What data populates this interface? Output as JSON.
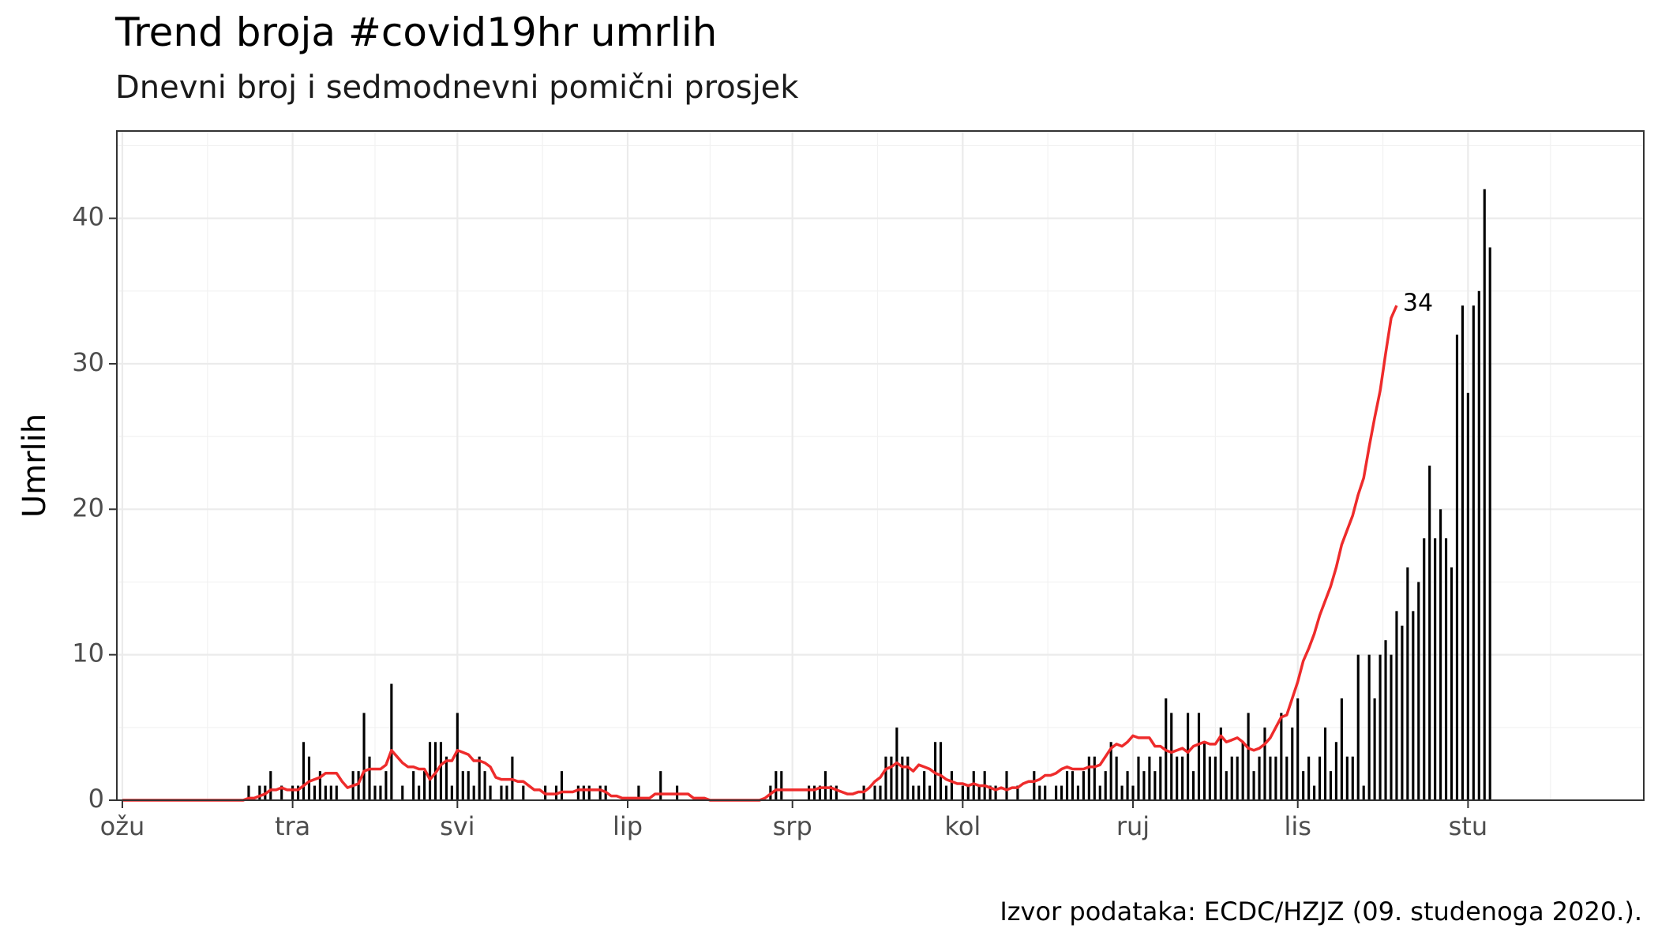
{
  "chart_data": {
    "type": "bar",
    "title": "Trend broja #covid19hr umrlih",
    "subtitle": "Dnevni broj i sedmodnevni pomični prosjek",
    "ylabel": "Umrlih",
    "caption": "Izvor podataka: ECDC/HZJZ (09. studenoga 2020.).",
    "x_start_date": "2020-03-01",
    "x_end_date": "2020-11-09",
    "xlim": [
      "2020-02-29",
      "2020-12-03"
    ],
    "ylim": [
      0,
      46
    ],
    "y_ticks": [
      0,
      10,
      20,
      30,
      40
    ],
    "x_ticks": [
      {
        "date": "2020-03-01",
        "label": "ožu"
      },
      {
        "date": "2020-04-01",
        "label": "tra"
      },
      {
        "date": "2020-05-01",
        "label": "svi"
      },
      {
        "date": "2020-06-01",
        "label": "lip"
      },
      {
        "date": "2020-07-01",
        "label": "srp"
      },
      {
        "date": "2020-08-01",
        "label": "kol"
      },
      {
        "date": "2020-09-01",
        "label": "ruj"
      },
      {
        "date": "2020-10-01",
        "label": "lis"
      },
      {
        "date": "2020-11-01",
        "label": "stu"
      }
    ],
    "series": [
      {
        "type": "bar",
        "color": "#000000",
        "values": [
          0,
          0,
          0,
          0,
          0,
          0,
          0,
          0,
          0,
          0,
          0,
          0,
          0,
          0,
          0,
          0,
          0,
          0,
          0,
          0,
          0,
          0,
          0,
          1,
          0,
          1,
          1,
          2,
          0,
          1,
          0,
          1,
          1,
          4,
          3,
          1,
          2,
          1,
          1,
          1,
          0,
          0,
          2,
          2,
          6,
          3,
          1,
          1,
          2,
          8,
          0,
          1,
          0,
          2,
          1,
          2,
          4,
          4,
          4,
          3,
          1,
          6,
          2,
          2,
          1,
          3,
          2,
          1,
          0,
          1,
          1,
          3,
          0,
          1,
          0,
          0,
          0,
          1,
          0,
          1,
          2,
          0,
          0,
          1,
          1,
          1,
          0,
          1,
          1,
          0,
          0,
          0,
          0,
          0,
          1,
          0,
          0,
          0,
          2,
          0,
          0,
          1,
          0,
          0,
          0,
          0,
          0,
          0,
          0,
          0,
          0,
          0,
          0,
          0,
          0,
          0,
          0,
          0,
          1,
          2,
          2,
          0,
          0,
          0,
          0,
          1,
          1,
          1,
          2,
          1,
          1,
          0,
          0,
          0,
          0,
          1,
          0,
          1,
          1,
          3,
          3,
          5,
          3,
          3,
          1,
          1,
          2,
          1,
          4,
          4,
          1,
          2,
          0,
          1,
          1,
          2,
          1,
          2,
          1,
          1,
          0,
          2,
          0,
          1,
          0,
          0,
          2,
          1,
          1,
          0,
          1,
          1,
          2,
          2,
          1,
          2,
          3,
          3,
          1,
          2,
          4,
          3,
          1,
          2,
          1,
          3,
          2,
          3,
          2,
          3,
          7,
          6,
          3,
          3,
          6,
          2,
          6,
          4,
          3,
          3,
          5,
          2,
          3,
          3,
          4,
          6,
          2,
          3,
          5,
          3,
          3,
          6,
          3,
          5,
          7,
          2,
          3,
          1,
          3,
          5,
          2,
          4,
          7,
          3,
          3,
          10,
          1,
          10,
          7,
          10,
          11,
          10,
          13,
          12,
          16,
          13,
          15,
          18,
          23,
          18,
          20,
          18,
          16,
          32,
          34,
          28,
          34,
          35,
          42,
          38
        ]
      },
      {
        "type": "line",
        "name": "",
        "color": "#ee2b2b",
        "values": [
          0,
          0,
          0,
          0,
          0,
          0,
          0,
          0,
          0,
          0,
          0,
          0,
          0,
          0,
          0,
          0,
          0,
          0,
          0,
          0,
          0,
          0,
          0,
          0.14,
          0.14,
          0.29,
          0.43,
          0.71,
          0.71,
          0.86,
          0.71,
          0.71,
          0.71,
          1.0,
          1.29,
          1.43,
          1.57,
          1.86,
          1.86,
          1.86,
          1.29,
          0.86,
          1.0,
          1.14,
          2.0,
          2.14,
          2.14,
          2.14,
          2.43,
          3.43,
          3.0,
          2.57,
          2.29,
          2.29,
          2.14,
          2.14,
          1.43,
          1.86,
          2.43,
          2.71,
          2.71,
          3.43,
          3.29,
          3.14,
          2.71,
          2.71,
          2.57,
          2.29,
          1.57,
          1.43,
          1.43,
          1.43,
          1.29,
          1.29,
          1.0,
          0.71,
          0.71,
          0.43,
          0.43,
          0.43,
          0.57,
          0.57,
          0.57,
          0.71,
          0.71,
          0.71,
          0.71,
          0.71,
          0.57,
          0.29,
          0.29,
          0.14,
          0.14,
          0.14,
          0.14,
          0.14,
          0.14,
          0.43,
          0.43,
          0.43,
          0.43,
          0.43,
          0.43,
          0.43,
          0.14,
          0.14,
          0.14,
          0.0,
          0.0,
          0.0,
          0,
          0,
          0,
          0,
          0,
          0,
          0,
          0.14,
          0.43,
          0.71,
          0.71,
          0.71,
          0.71,
          0.71,
          0.71,
          0.71,
          0.71,
          0.86,
          0.86,
          0.86,
          0.71,
          0.57,
          0.43,
          0.43,
          0.57,
          0.57,
          0.86,
          1.29,
          1.57,
          2.14,
          2.29,
          2.57,
          2.29,
          2.29,
          2.0,
          2.43,
          2.29,
          2.14,
          1.86,
          1.71,
          1.43,
          1.29,
          1.14,
          1.14,
          1.0,
          1.14,
          1.0,
          1.0,
          0.86,
          0.71,
          0.86,
          0.71,
          0.86,
          0.86,
          1.14,
          1.29,
          1.29,
          1.43,
          1.71,
          1.71,
          1.86,
          2.14,
          2.29,
          2.14,
          2.14,
          2.14,
          2.29,
          2.29,
          2.43,
          3.0,
          3.57,
          3.86,
          3.71,
          4.0,
          4.43,
          4.29,
          4.29,
          4.29,
          3.71,
          3.71,
          3.43,
          3.29,
          3.43,
          3.57,
          3.29,
          3.71,
          3.86,
          4.0,
          3.86,
          3.86,
          4.43,
          4.0,
          4.14,
          4.29,
          4.0,
          3.57,
          3.43,
          3.57,
          3.86,
          4.29,
          5.0,
          5.71,
          5.86,
          7.0,
          8.14,
          9.57,
          10.43,
          11.43,
          12.71,
          13.71,
          14.71,
          16.0,
          17.57,
          18.57,
          19.57,
          21.0,
          22.14,
          24.29,
          26.29,
          28.14,
          30.71,
          33.14,
          34.0
        ]
      }
    ],
    "end_label": "34"
  }
}
